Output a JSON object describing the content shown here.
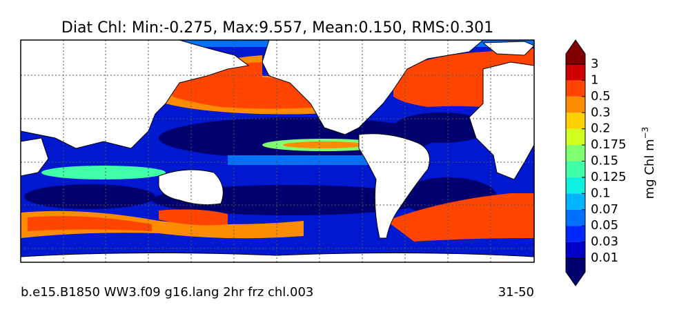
{
  "title": "Diat Chl: Min:-0.275, Max:9.557, Mean:0.150, RMS:0.301",
  "footer": {
    "case": "b.e15.B1850 WW3.f09 g16.lang 2hr frz chl.003",
    "years": "31-50"
  },
  "colorbar": {
    "label": {
      "text": "mg Chl m",
      "exponent": "−3"
    },
    "levels": [
      0.01,
      0.03,
      0.05,
      0.07,
      0.1,
      0.125,
      0.15,
      0.175,
      0.2,
      0.3,
      0.5,
      1,
      3
    ],
    "colors": [
      "#00006e",
      "#0000c8",
      "#0028ff",
      "#0070ff",
      "#00b4ff",
      "#10f0e0",
      "#40ffa8",
      "#80ff70",
      "#d0ff20",
      "#ffd000",
      "#ff8c00",
      "#ff4500",
      "#d00000",
      "#800000"
    ]
  }
}
